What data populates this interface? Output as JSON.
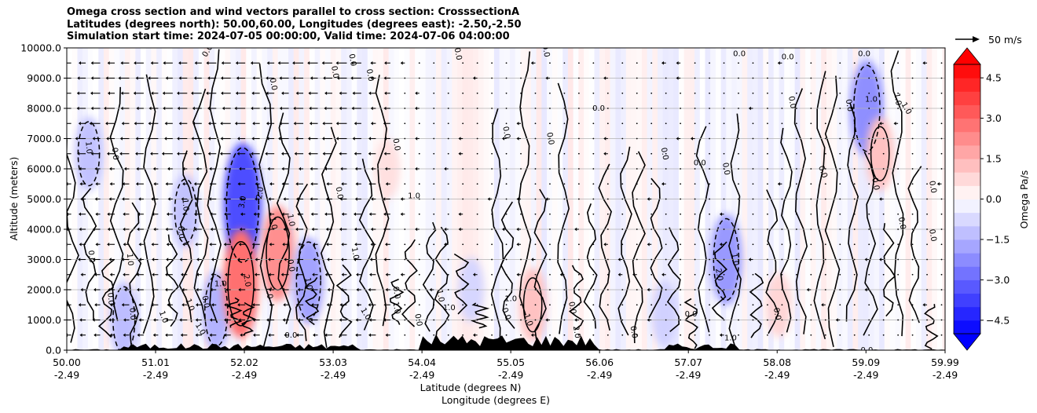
{
  "chart_data": {
    "type": "heatmap",
    "title_lines": [
      "Omega cross section and wind vectors parallel to cross section: CrosssectionA",
      "Latitudes (degrees north): 50.00,60.00, Longitudes (degrees east): -2.50,-2.50",
      "Simulation start time: 2024-07-05 00:00:00, Valid time: 2024-07-06 04:00:00"
    ],
    "xlabel_lat": "Latitude (degrees N)",
    "xlabel_lon": "Longitude (degrees E)",
    "ylabel": "Altitude (meters)",
    "ylim": [
      0,
      10000
    ],
    "xlim": [
      50.0,
      59.99
    ],
    "grid": "horizontal",
    "y_ticks": [
      {
        "value": 0,
        "label": "0.0"
      },
      {
        "value": 1000,
        "label": "1000.0"
      },
      {
        "value": 2000,
        "label": "2000.0"
      },
      {
        "value": 3000,
        "label": "3000.0"
      },
      {
        "value": 4000,
        "label": "4000.0"
      },
      {
        "value": 5000,
        "label": "5000.0"
      },
      {
        "value": 6000,
        "label": "6000.0"
      },
      {
        "value": 7000,
        "label": "7000.0"
      },
      {
        "value": 8000,
        "label": "8000.0"
      },
      {
        "value": 9000,
        "label": "9000.0"
      },
      {
        "value": 10000,
        "label": "10000.0"
      }
    ],
    "x_ticks": [
      {
        "lat": 50.0,
        "lat_label": "50.00",
        "lon_label": "-2.49"
      },
      {
        "lat": 51.01,
        "lat_label": "51.01",
        "lon_label": "-2.49"
      },
      {
        "lat": 52.02,
        "lat_label": "52.02",
        "lon_label": "-2.49"
      },
      {
        "lat": 53.03,
        "lat_label": "53.03",
        "lon_label": "-2.49"
      },
      {
        "lat": 54.04,
        "lat_label": "54.04",
        "lon_label": "-2.49"
      },
      {
        "lat": 55.05,
        "lat_label": "55.05",
        "lon_label": "-2.49"
      },
      {
        "lat": 56.06,
        "lat_label": "56.06",
        "lon_label": "-2.49"
      },
      {
        "lat": 57.07,
        "lat_label": "57.07",
        "lon_label": "-2.49"
      },
      {
        "lat": 58.08,
        "lat_label": "58.08",
        "lon_label": "-2.49"
      },
      {
        "lat": 59.09,
        "lat_label": "59.09",
        "lon_label": "-2.49"
      },
      {
        "lat": 59.99,
        "lat_label": "59.99",
        "lon_label": "-2.49"
      }
    ],
    "colorbar": {
      "label": "Omega Pa/s",
      "range": [
        -5.0,
        5.0
      ],
      "levels": 20,
      "extend": "both",
      "colors": {
        "min": "#0000ff",
        "mid": "#ffffff",
        "max": "#ff0000"
      },
      "ticks": [
        {
          "value": 4.5,
          "label": "4.5"
        },
        {
          "value": 3.0,
          "label": "3.0"
        },
        {
          "value": 1.5,
          "label": "1.5"
        },
        {
          "value": 0.0,
          "label": "0.0"
        },
        {
          "value": -1.5,
          "label": "−1.5"
        },
        {
          "value": -3.0,
          "label": "−3.0"
        },
        {
          "value": -4.5,
          "label": "−4.5"
        }
      ]
    },
    "quiver_key": {
      "label": "50 m/s",
      "speed": 50
    },
    "omega_features": [
      {
        "lat": 50.25,
        "alt": 6500,
        "omega": -1.2
      },
      {
        "lat": 50.65,
        "alt": 1000,
        "omega": -1.3
      },
      {
        "lat": 51.35,
        "alt": 4600,
        "omega": -1.2
      },
      {
        "lat": 51.7,
        "alt": 1300,
        "omega": -1.5
      },
      {
        "lat": 52.0,
        "alt": 4800,
        "omega": -3.5
      },
      {
        "lat": 51.98,
        "alt": 2200,
        "omega": 2.8
      },
      {
        "lat": 52.4,
        "alt": 3200,
        "omega": 2.2
      },
      {
        "lat": 52.75,
        "alt": 2300,
        "omega": -1.8
      },
      {
        "lat": 53.65,
        "alt": 6000,
        "omega": 0.6
      },
      {
        "lat": 54.6,
        "alt": 2000,
        "omega": -0.8
      },
      {
        "lat": 55.3,
        "alt": 1500,
        "omega": 1.2
      },
      {
        "lat": 56.8,
        "alt": 1200,
        "omega": -0.9
      },
      {
        "lat": 57.5,
        "alt": 3000,
        "omega": -2.0
      },
      {
        "lat": 58.1,
        "alt": 1500,
        "omega": 0.8
      },
      {
        "lat": 59.1,
        "alt": 8000,
        "omega": -2.2
      },
      {
        "lat": 59.25,
        "alt": 6500,
        "omega": 1.2
      }
    ],
    "contour_labels": [
      {
        "lat": 50.25,
        "alt": 6700,
        "text": "1.0",
        "rotate": 85
      },
      {
        "lat": 50.55,
        "alt": 6500,
        "text": "0.0",
        "rotate": 85
      },
      {
        "lat": 50.28,
        "alt": 3100,
        "text": "0.0",
        "rotate": 85
      },
      {
        "lat": 50.72,
        "alt": 3000,
        "text": "1.0",
        "rotate": 85
      },
      {
        "lat": 50.5,
        "alt": 1700,
        "text": "0.0",
        "rotate": 85
      },
      {
        "lat": 50.75,
        "alt": 1200,
        "text": "0.0",
        "rotate": 85
      },
      {
        "lat": 51.6,
        "alt": 9900,
        "text": "0.0",
        "rotate": -60
      },
      {
        "lat": 51.35,
        "alt": 4800,
        "text": "1.0",
        "rotate": 85
      },
      {
        "lat": 51.3,
        "alt": 3900,
        "text": "0.0",
        "rotate": 85
      },
      {
        "lat": 51.1,
        "alt": 1100,
        "text": "1.0",
        "rotate": 70
      },
      {
        "lat": 51.4,
        "alt": 1500,
        "text": "1.0",
        "rotate": 70
      },
      {
        "lat": 51.52,
        "alt": 700,
        "text": "1.0",
        "rotate": 60
      },
      {
        "lat": 51.58,
        "alt": 1600,
        "text": "0.0",
        "rotate": 80
      },
      {
        "lat": 51.75,
        "alt": 2200,
        "text": "1.0",
        "rotate": 0
      },
      {
        "lat": 52.05,
        "alt": 2300,
        "text": "2.0",
        "rotate": 80
      },
      {
        "lat": 52.0,
        "alt": 4900,
        "text": "3.0",
        "rotate": -80
      },
      {
        "lat": 52.2,
        "alt": 5200,
        "text": "2.0",
        "rotate": -80
      },
      {
        "lat": 52.35,
        "alt": 4200,
        "text": "1.0",
        "rotate": 80
      },
      {
        "lat": 52.55,
        "alt": 4300,
        "text": "1.0",
        "rotate": 80
      },
      {
        "lat": 52.3,
        "alt": 1900,
        "text": "1.0",
        "rotate": 80
      },
      {
        "lat": 52.55,
        "alt": 2800,
        "text": "0.0",
        "rotate": 80
      },
      {
        "lat": 52.75,
        "alt": 2200,
        "text": "1.0",
        "rotate": 80
      },
      {
        "lat": 52.55,
        "alt": 500,
        "text": "0.0",
        "rotate": 0
      },
      {
        "lat": 52.35,
        "alt": 8800,
        "text": "0.0",
        "rotate": 80
      },
      {
        "lat": 53.05,
        "alt": 9200,
        "text": "0.0",
        "rotate": 80
      },
      {
        "lat": 53.25,
        "alt": 9600,
        "text": "0.0",
        "rotate": 80
      },
      {
        "lat": 53.45,
        "alt": 9100,
        "text": "0.0",
        "rotate": 80
      },
      {
        "lat": 53.1,
        "alt": 5200,
        "text": "0.0",
        "rotate": 80
      },
      {
        "lat": 53.28,
        "alt": 3200,
        "text": "1.0",
        "rotate": 80
      },
      {
        "lat": 53.4,
        "alt": 1200,
        "text": "1.0",
        "rotate": 60
      },
      {
        "lat": 53.75,
        "alt": 1400,
        "text": "1.0",
        "rotate": 80
      },
      {
        "lat": 53.75,
        "alt": 1900,
        "text": "0.0",
        "rotate": 80
      },
      {
        "lat": 53.75,
        "alt": 6800,
        "text": "0.0",
        "rotate": 80
      },
      {
        "lat": 53.95,
        "alt": 5100,
        "text": "1.0",
        "rotate": 0
      },
      {
        "lat": 54.25,
        "alt": 1800,
        "text": "1.0",
        "rotate": 80
      },
      {
        "lat": 54.35,
        "alt": 1400,
        "text": "1.0",
        "rotate": 0
      },
      {
        "lat": 54.0,
        "alt": 1000,
        "text": "0.0",
        "rotate": 80
      },
      {
        "lat": 54.45,
        "alt": 9800,
        "text": "0.0",
        "rotate": 80
      },
      {
        "lat": 55.05,
        "alt": 1700,
        "text": "1.0",
        "rotate": 0
      },
      {
        "lat": 55.0,
        "alt": 1200,
        "text": "0.0",
        "rotate": 70
      },
      {
        "lat": 55.25,
        "alt": 1000,
        "text": "1.0",
        "rotate": 70
      },
      {
        "lat": 55.45,
        "alt": 9900,
        "text": "0.0",
        "rotate": 80
      },
      {
        "lat": 55.75,
        "alt": 1400,
        "text": "0.0",
        "rotate": 80
      },
      {
        "lat": 55.8,
        "alt": 600,
        "text": "2.0",
        "rotate": 80
      },
      {
        "lat": 55.0,
        "alt": 7200,
        "text": "0.0",
        "rotate": 80
      },
      {
        "lat": 55.5,
        "alt": 7000,
        "text": "0.0",
        "rotate": 80
      },
      {
        "lat": 56.05,
        "alt": 8000,
        "text": "0.0",
        "rotate": 0
      },
      {
        "lat": 56.45,
        "alt": 600,
        "text": "0.0",
        "rotate": 80
      },
      {
        "lat": 56.8,
        "alt": 6500,
        "text": "0.0",
        "rotate": 80
      },
      {
        "lat": 57.1,
        "alt": 1200,
        "text": "0.0",
        "rotate": 0
      },
      {
        "lat": 57.2,
        "alt": 6200,
        "text": "0.0",
        "rotate": 0
      },
      {
        "lat": 57.42,
        "alt": 2500,
        "text": "2.0",
        "rotate": 80
      },
      {
        "lat": 57.6,
        "alt": 3000,
        "text": "1.0",
        "rotate": 80
      },
      {
        "lat": 57.55,
        "alt": 400,
        "text": "1.0",
        "rotate": 0
      },
      {
        "lat": 57.5,
        "alt": 6000,
        "text": "0.0",
        "rotate": 80
      },
      {
        "lat": 57.65,
        "alt": 9800,
        "text": "0.0",
        "rotate": 0
      },
      {
        "lat": 58.2,
        "alt": 9700,
        "text": "0.0",
        "rotate": 0
      },
      {
        "lat": 58.25,
        "alt": 8200,
        "text": "0.0",
        "rotate": 80
      },
      {
        "lat": 58.08,
        "alt": 1200,
        "text": "0.0",
        "rotate": 80
      },
      {
        "lat": 58.6,
        "alt": 5900,
        "text": "0.0",
        "rotate": 70
      },
      {
        "lat": 58.9,
        "alt": 8100,
        "text": "0.0",
        "rotate": 80
      },
      {
        "lat": 59.1,
        "alt": 0,
        "text": "0.0",
        "rotate": 0
      },
      {
        "lat": 59.2,
        "alt": 5500,
        "text": "0.0",
        "rotate": 80
      },
      {
        "lat": 59.45,
        "alt": 8300,
        "text": "1.0",
        "rotate": 80
      },
      {
        "lat": 59.55,
        "alt": 8000,
        "text": "1.0",
        "rotate": 60
      },
      {
        "lat": 59.85,
        "alt": 5400,
        "text": "0.0",
        "rotate": 80
      },
      {
        "lat": 59.5,
        "alt": 4200,
        "text": "0.0",
        "rotate": 80
      },
      {
        "lat": 59.85,
        "alt": 3800,
        "text": "0.0",
        "rotate": 80
      },
      {
        "lat": 59.07,
        "alt": 9800,
        "text": "0.0",
        "rotate": 0
      },
      {
        "lat": 59.15,
        "alt": 8300,
        "text": "1.0",
        "rotate": 0
      }
    ]
  }
}
